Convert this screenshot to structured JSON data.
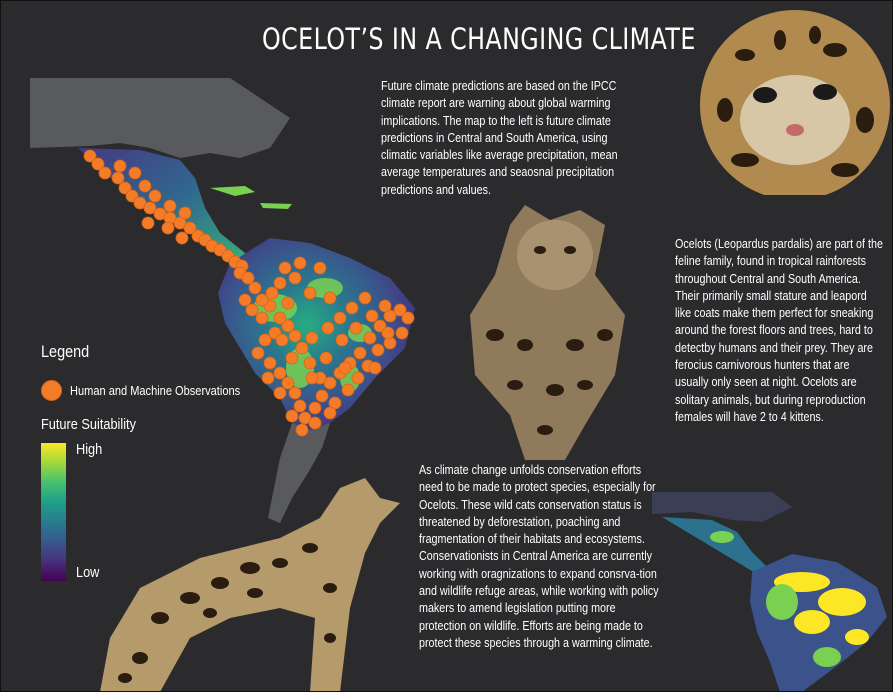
{
  "title": "OCELOT’S IN A CHANGING CLIMATE",
  "paragraphs": {
    "climate": "Future climate predictions are based on the IPCC climate report are warning about global warming implications. The map to the left is future climate predictions in Central and South America, using climatic variables like average precipitation, mean average temperatures and seaosnal precipitation predictions and values.",
    "ocelots": "Ocelots (Leopardus pardalis) are part of the feline family, found in tropical rainforests throughout Central and South America. Their primarily small stature and leapord like coats make them perfect for sneaking around the forest floors and trees, hard to detectby humans and their prey. They are ferocius carnivorous hunters that are usually only seen at night. Ocelots are solitary animals, but during reproduction females will have 2 to 4 kittens.",
    "conservation": "As climate change unfolds conservation efforts need to be made to protect species, especially for Ocelots. These wild cats conservation status is threatened by deforestation, poaching and fragmentation of their habitats and ecosystems. Conservationists in Central America are currently working with oragnizations to expand consrva-tion and wildlife refuge areas, while working with policy makers to amend legislation putting more protection on wildlife. Efforts are being made to protect these species through a warming climate."
  },
  "legend": {
    "title": "Legend",
    "observations_label": "Human and Machine Observations",
    "suitability_title": "Future Suitability",
    "high_label": "High",
    "low_label": "Low"
  },
  "colors": {
    "background": "#2b2b2d",
    "observation_marker": "#f47c28",
    "suitability_ramp": [
      "#fde725",
      "#a0da39",
      "#4ac16d",
      "#1fa187",
      "#277f8e",
      "#365c8d",
      "#46327e",
      "#440154"
    ],
    "land_gray": "#585a5e"
  },
  "images": {
    "main_map": "suitability-map-with-observations",
    "inset_map": "suitability-map-inset",
    "photo_face": "ocelot-face-photo",
    "photo_lying": "ocelot-lying-photo",
    "photo_standing": "ocelot-standing-photo"
  }
}
